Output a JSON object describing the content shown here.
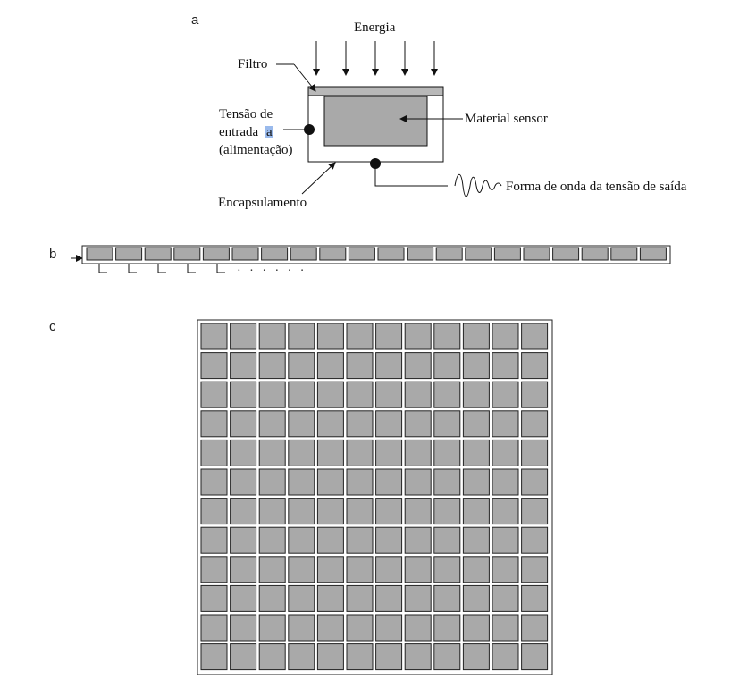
{
  "panels": {
    "a": "a",
    "b": "b",
    "c": "c"
  },
  "labels": {
    "energy": "Energia",
    "filter": "Filtro",
    "input_voltage_line1": "Tensão de",
    "input_voltage_line2": "entrada",
    "input_voltage_line2_highlight": "a",
    "input_voltage_line3": "(alimentação)",
    "sensing_material": "Material sensor",
    "output_waveform": "Forma de onda da tensão de saída",
    "housing": "Encapsulamento",
    "continuation_dots": "· · · · · ·"
  },
  "line_array": {
    "sensor_count": 20,
    "lead_count": 5
  },
  "area_array": {
    "rows": 12,
    "cols": 12
  },
  "colors": {
    "sensor_fill": "#a9a9a9",
    "line": "#111111",
    "highlight": "#8fb3ea"
  }
}
